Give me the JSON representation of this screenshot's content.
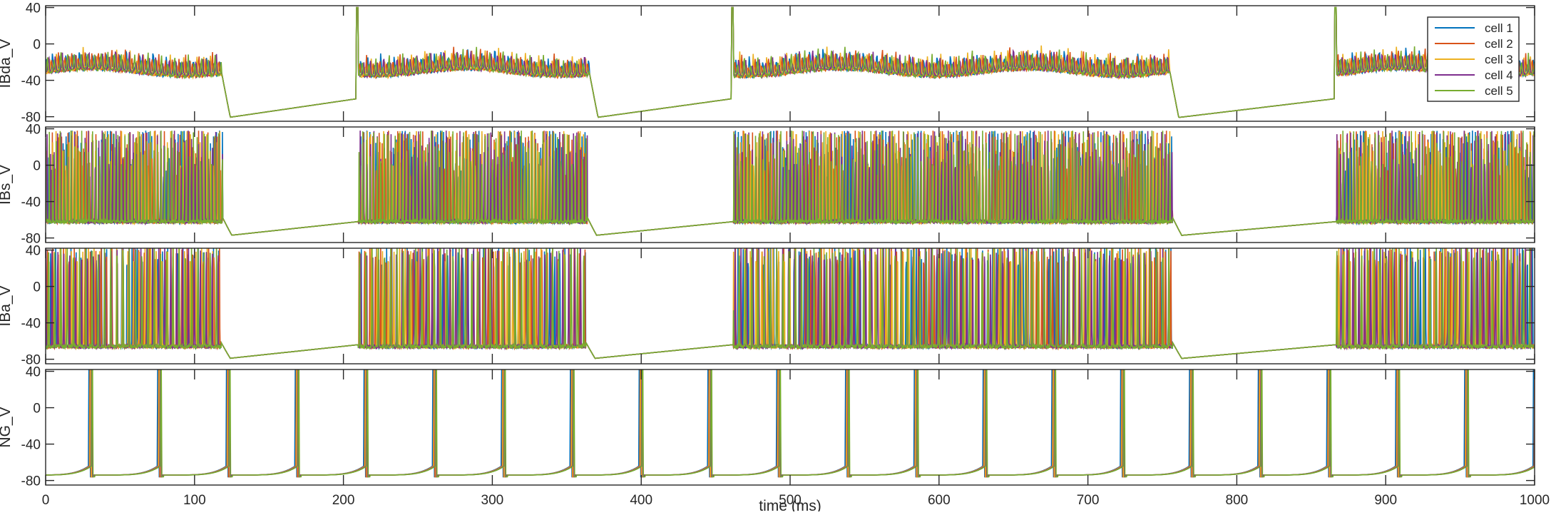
{
  "chart_data": [
    {
      "type": "line",
      "ylabel": "IBda_V",
      "ylim": [
        -85,
        42
      ],
      "yticks": [
        40,
        0,
        -40,
        -80
      ],
      "series": [
        {
          "name": "cell 1",
          "color": "#0072BD"
        },
        {
          "name": "cell 2",
          "color": "#D95319"
        },
        {
          "name": "cell 3",
          "color": "#EDB120"
        },
        {
          "name": "cell 4",
          "color": "#7E2F8E"
        },
        {
          "name": "cell 5",
          "color": "#77AC30"
        }
      ],
      "legend": "top-right",
      "bursts": [
        [
          0,
          118
        ],
        [
          210,
          365
        ],
        [
          462,
          755
        ],
        [
          867,
          1000
        ]
      ],
      "burst_trace": {
        "base": -28,
        "spike_amp": 18,
        "spike_period": 4.5,
        "drift": 4
      },
      "silent_trace": {
        "start": -82,
        "end": -60,
        "peak": 40
      }
    },
    {
      "type": "line",
      "ylabel": "IBs_V",
      "ylim": [
        -85,
        42
      ],
      "yticks": [
        40,
        0,
        -40,
        -80
      ],
      "bursts": [
        [
          0,
          119
        ],
        [
          210,
          364
        ],
        [
          462,
          757
        ],
        [
          867,
          1000
        ]
      ],
      "burst_trace": {
        "base": -62,
        "spike_top": 38,
        "spike_period": 2.2
      },
      "silent_trace": {
        "start": -78,
        "end": -62
      }
    },
    {
      "type": "line",
      "ylabel": "IBa_V",
      "ylim": [
        -85,
        42
      ],
      "yticks": [
        40,
        0,
        -40,
        -80
      ],
      "bursts": [
        [
          0,
          118
        ],
        [
          210,
          363
        ],
        [
          462,
          757
        ],
        [
          867,
          1000
        ]
      ],
      "burst_trace": {
        "base": -66,
        "spike_top": 45,
        "spike_period": 3.8
      },
      "silent_trace": {
        "start": -80,
        "end": -64
      }
    },
    {
      "type": "line",
      "ylabel": "NG_V",
      "ylim": [
        -85,
        42
      ],
      "yticks": [
        40,
        0,
        -40,
        -80
      ],
      "periodic_spikes": {
        "first": 29,
        "period": 46.2,
        "rest": -74,
        "top": 45,
        "end": 1000
      },
      "xlabel": "time (ms)",
      "xlim": [
        0,
        1000
      ],
      "xticks": [
        0,
        100,
        200,
        300,
        400,
        500,
        600,
        700,
        800,
        900,
        1000
      ]
    }
  ]
}
